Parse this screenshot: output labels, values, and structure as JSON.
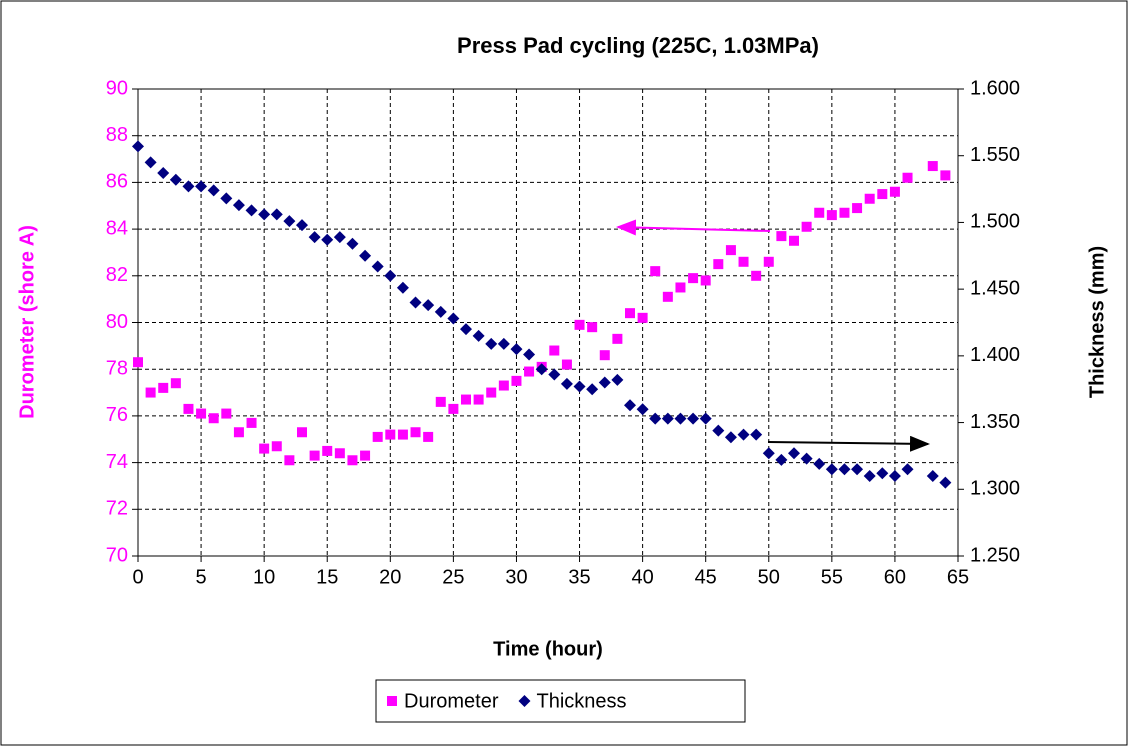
{
  "chart_data": {
    "type": "scatter",
    "title": "Press Pad cycling (225C, 1.03MPa)",
    "x_label": "Time (hour)",
    "y_label": "Durometer (shore A)",
    "y2_label": "Thickness (mm)",
    "x": [
      0,
      1,
      2,
      3,
      4,
      5,
      6,
      7,
      8,
      9,
      10,
      11,
      12,
      13,
      14,
      15,
      16,
      17,
      18,
      19,
      20,
      21,
      22,
      23,
      24,
      25,
      26,
      27,
      28,
      29,
      30,
      31,
      32,
      33,
      34,
      35,
      36,
      37,
      38,
      39,
      40,
      41,
      42,
      43,
      44,
      45,
      46,
      47,
      48,
      49,
      50,
      51,
      52,
      53,
      54,
      55,
      56,
      57,
      58,
      59,
      60,
      61,
      62,
      63,
      64
    ],
    "series": [
      {
        "name": "Durometer",
        "color": "#ff00ff",
        "marker": "square",
        "values": [
          78.3,
          77.0,
          77.2,
          77.4,
          76.3,
          76.1,
          75.9,
          76.1,
          75.3,
          75.7,
          74.6,
          74.7,
          74.1,
          75.3,
          74.3,
          74.5,
          74.4,
          74.1,
          74.3,
          75.1,
          75.2,
          75.2,
          75.3,
          75.1,
          76.6,
          76.3,
          76.7,
          76.7,
          77.0,
          77.3,
          77.5,
          77.9,
          78.1,
          78.8,
          78.2,
          79.9,
          79.8,
          78.6,
          79.3,
          80.4,
          80.2,
          82.2,
          81.1,
          81.5,
          81.9,
          81.8,
          82.5,
          83.1,
          82.6,
          82.0,
          82.6,
          83.7,
          83.5,
          84.1,
          84.7,
          84.6,
          84.7,
          84.9,
          85.3,
          85.5,
          85.6,
          86.2,
          null,
          86.7,
          86.3
        ]
      },
      {
        "name": "Thickness",
        "color": "#000080",
        "marker": "diamond",
        "axis": "y2",
        "values": [
          1.557,
          1.545,
          1.537,
          1.532,
          1.527,
          1.527,
          1.524,
          1.518,
          1.513,
          1.509,
          1.506,
          1.506,
          1.501,
          1.498,
          1.489,
          1.487,
          1.489,
          1.484,
          1.475,
          1.467,
          1.46,
          1.451,
          1.44,
          1.438,
          1.433,
          1.428,
          1.42,
          1.415,
          1.409,
          1.409,
          1.405,
          1.401,
          1.39,
          1.386,
          1.379,
          1.377,
          1.375,
          1.38,
          1.382,
          1.363,
          1.36,
          1.353,
          1.353,
          1.353,
          1.353,
          1.353,
          1.344,
          1.339,
          1.341,
          1.341,
          1.327,
          1.322,
          1.327,
          1.323,
          1.319,
          1.315,
          1.315,
          1.315,
          1.31,
          1.312,
          1.31,
          1.315,
          null,
          1.31,
          1.305
        ]
      }
    ],
    "xlim": [
      0,
      65
    ],
    "xticks": [
      0,
      5,
      10,
      15,
      20,
      25,
      30,
      35,
      40,
      45,
      50,
      55,
      60,
      65
    ],
    "ylim": [
      70,
      90
    ],
    "yticks": [
      70,
      72,
      74,
      76,
      78,
      80,
      82,
      84,
      86,
      88,
      90
    ],
    "y2lim": [
      1.25,
      1.6
    ],
    "y2ticks": [
      {
        "value": 1.25,
        "label": "1.250"
      },
      {
        "value": 1.3,
        "label": "1.300"
      },
      {
        "value": 1.35,
        "label": "1.350"
      },
      {
        "value": 1.4,
        "label": "1.400"
      },
      {
        "value": 1.45,
        "label": "1.450"
      },
      {
        "value": 1.5,
        "label": "1.500"
      },
      {
        "value": 1.55,
        "label": "1.550"
      },
      {
        "value": 1.6,
        "label": "1.600"
      }
    ],
    "grid": true,
    "legend": "bottom"
  }
}
